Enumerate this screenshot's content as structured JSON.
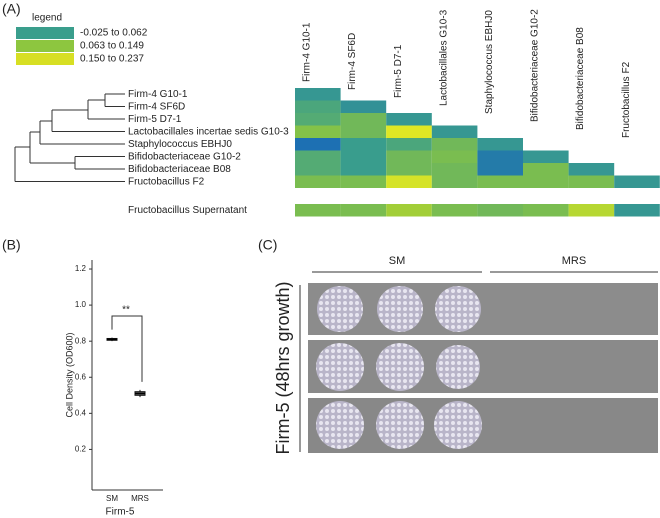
{
  "panels": [
    "(A)",
    "(B)",
    "(C)"
  ],
  "chart_data": [
    {
      "type": "heatmap",
      "legend_title": "legend",
      "legend": [
        {
          "label": "-0.025 to 0.062",
          "color": "#3a9e8c"
        },
        {
          "label": "0.063 to 0.149",
          "color": "#8dc63f"
        },
        {
          "label": "0.150 to 0.237",
          "color": "#d7df23"
        }
      ],
      "colorscale": {
        "domain": [
          -0.025,
          0.237
        ],
        "colors": [
          "#1b6db5",
          "#3a9e8c",
          "#8dc63f",
          "#e6ea22"
        ]
      },
      "columns": [
        "Firm-4 G10-1",
        "Firm-4 SF6D",
        "Firm-5 D7-1",
        "Lactobacillales G10-3",
        "Staphylococcus  EBHJ0",
        "Bifidobacteriaceae G10-2",
        "Bifidobacteriaceae B08",
        "Fructobacillus F2"
      ],
      "rows": [
        "Firm-4 G10-1",
        "Firm-4 SF6D",
        "Firm-5 D7-1",
        "Lactobacillales incertae sedis G10-3",
        "Staphylococcus  EBHJ0",
        "Bifidobacteriaceae G10-2",
        "Bifidobacteriaceae B08",
        "Fructobacillus F2",
        "Fructobacillus Supernatant"
      ],
      "values": [
        [
          0.05,
          null,
          null,
          null,
          null,
          null,
          null,
          null
        ],
        [
          0.08,
          0.04,
          null,
          null,
          null,
          null,
          null,
          null
        ],
        [
          0.09,
          0.12,
          0.05,
          null,
          null,
          null,
          null,
          null
        ],
        [
          0.14,
          0.12,
          0.23,
          0.05,
          null,
          null,
          null,
          null
        ],
        [
          -0.02,
          0.06,
          0.08,
          0.12,
          0.05,
          null,
          null,
          null
        ],
        [
          0.09,
          0.06,
          0.12,
          0.13,
          0.0,
          0.05,
          null,
          null
        ],
        [
          0.09,
          0.06,
          0.12,
          0.12,
          0.0,
          0.13,
          0.05,
          null
        ],
        [
          0.13,
          0.13,
          0.22,
          0.12,
          0.13,
          0.13,
          0.13,
          0.05
        ],
        [
          0.13,
          0.13,
          0.17,
          0.13,
          0.12,
          0.13,
          0.19,
          0.05
        ]
      ]
    },
    {
      "type": "box",
      "categories": [
        "SM",
        "MRS"
      ],
      "min": [
        0.8,
        0.49
      ],
      "q1": [
        0.805,
        0.5
      ],
      "median": [
        0.81,
        0.51
      ],
      "q3": [
        0.815,
        0.52
      ],
      "max": [
        0.82,
        0.53
      ],
      "ylim": [
        0,
        1.25
      ],
      "yticks": [
        0.2,
        0.4,
        0.6,
        0.8,
        {
          "value": 1,
          "label": "1.0"
        },
        1.2
      ],
      "ylabel": "Cell Density (OD600)",
      "xlabel": "Firm-5",
      "annotation": "**"
    }
  ],
  "photo": {
    "groups": [
      "SM",
      "MRS"
    ],
    "side_label": "Firm-5 (48hrs growth)"
  }
}
